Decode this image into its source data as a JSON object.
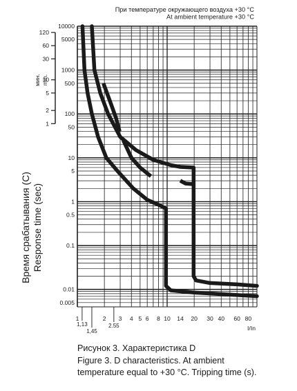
{
  "chart_data": {
    "type": "line",
    "title_lines": [
      "При температуре окружающего воздуха +30 °C",
      "At ambient temperature +30 °C"
    ],
    "ylabel_lines": [
      "Время срабатывания (С)",
      "Response time (sec)"
    ],
    "xlabel": "I/In",
    "y_scale": "log",
    "ylim": [
      0.004,
      10000
    ],
    "x_scale": "log",
    "xlim": [
      1,
      100
    ],
    "y_ticks": [
      "10000",
      "5000",
      "1000",
      "500",
      "100",
      "50",
      "10",
      "5",
      "1",
      "0.5",
      "0.1",
      "0.01",
      "0.005"
    ],
    "y_tick_values": [
      10000,
      5000,
      1000,
      500,
      100,
      50,
      10,
      5,
      1,
      0.5,
      0.1,
      0.01,
      0.005
    ],
    "x_ticks": [
      "1",
      "2",
      "3",
      "4",
      "5",
      "6",
      "8",
      "10",
      "14",
      "20",
      "30",
      "40",
      "60",
      "80"
    ],
    "x_tick_values": [
      1,
      2,
      3,
      4,
      5,
      6,
      8,
      10,
      14,
      20,
      30,
      40,
      60,
      80
    ],
    "x_extra_ticks": [
      "1,13",
      "1,45",
      "2.55"
    ],
    "x_extra_tick_values": [
      1.13,
      1.45,
      2.55
    ],
    "minutes_axis": {
      "label_lines": [
        "мин.",
        "min."
      ],
      "ticks": [
        "120",
        "60",
        "30",
        "10",
        "5",
        "2",
        "1"
      ],
      "tick_values_seconds": [
        7200,
        3600,
        1800,
        600,
        300,
        120,
        60
      ]
    },
    "grid": true,
    "series": [
      {
        "points": [
          [
            1.14,
            10000
          ],
          [
            1.2,
            1000
          ],
          [
            1.3,
            300
          ],
          [
            1.45,
            100
          ],
          [
            1.7,
            30
          ],
          [
            2.1,
            10
          ],
          [
            2.8,
            5
          ],
          [
            4.2,
            2
          ],
          [
            6,
            1.1
          ],
          [
            8,
            0.85
          ],
          [
            9.7,
            0.7
          ],
          [
            9.7,
            0.012
          ],
          [
            11,
            0.0095
          ],
          [
            20,
            0.0085
          ],
          [
            40,
            0.0078
          ],
          [
            100,
            0.007
          ]
        ]
      },
      {
        "points": [
          [
            1.45,
            10000
          ],
          [
            1.55,
            1000
          ],
          [
            1.8,
            300
          ],
          [
            2.2,
            100
          ],
          [
            3,
            30
          ],
          [
            4.5,
            15
          ],
          [
            7,
            9
          ],
          [
            11,
            6.8
          ],
          [
            14,
            6.2
          ],
          [
            19.7,
            6
          ],
          [
            19.7,
            0.02
          ],
          [
            21,
            0.016
          ],
          [
            30,
            0.014
          ],
          [
            60,
            0.013
          ],
          [
            100,
            0.012
          ]
        ]
      },
      {
        "dashes": [
          [
            [
              1.95,
              500
            ],
            [
              2.3,
              200
            ],
            [
              2.7,
              80
            ],
            [
              2.95,
              40
            ]
          ],
          [
            [
              3.25,
              25
            ],
            [
              4,
              10
            ],
            [
              5,
              6
            ],
            [
              6.6,
              3.8
            ]
          ],
          [
            [
              14,
              3
            ],
            [
              16,
              2.6
            ],
            [
              19.7,
              2.5
            ]
          ]
        ]
      }
    ],
    "caption_lines": [
      "Рисунок 3. Характеристика D",
      "Figure 3. D characteristics. At ambient",
      "temperature equal to +30 °C. Tripping time (s)."
    ]
  }
}
